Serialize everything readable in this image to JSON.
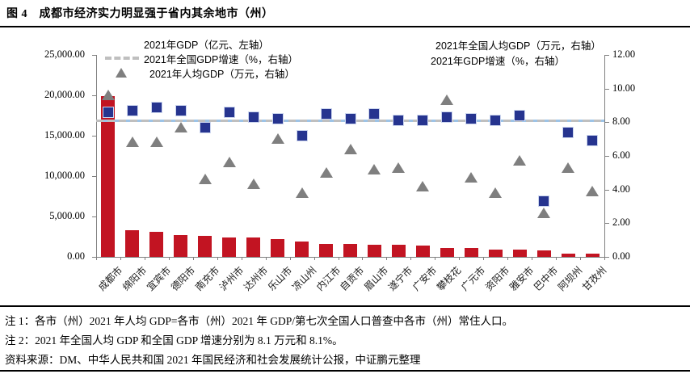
{
  "title": "图 4　成都市经济实力明显强于省内其余地市（州）",
  "legend": {
    "left": [
      {
        "icon": "red-bar-swatch",
        "label": "2021年GDP（亿元、左轴）"
      },
      {
        "icon": "gray-dash-swatch",
        "label": "2021年全国GDP增速（%，右轴）"
      },
      {
        "icon": "gray-triangle-swatch",
        "label": "2021年人均GDP（万元，右轴）"
      }
    ],
    "right": [
      {
        "icon": "blue-line-swatch",
        "label": "2021年全国人均GDP（万元，右轴）"
      },
      {
        "icon": "navy-square-swatch",
        "label": "2021年GDP增速（%，右轴）"
      }
    ]
  },
  "colors": {
    "bar_red": "#C21422",
    "square_navy": "#26348F",
    "triangle_gray": "#7F7F7F",
    "national_percap_blue": "#9DC3E6",
    "national_growth_gray": "#BFBFBF",
    "axis_gray": "#808080"
  },
  "chart_data": {
    "type": "bar",
    "categories": [
      "成都市",
      "绵阳市",
      "宜宾市",
      "德阳市",
      "南充市",
      "泸州市",
      "达州市",
      "乐山市",
      "凉山州",
      "内江市",
      "自贡市",
      "眉山市",
      "遂宁市",
      "广安市",
      "攀枝花",
      "广元市",
      "资阳市",
      "雅安市",
      "巴中市",
      "阿坝州",
      "甘孜州"
    ],
    "series": [
      {
        "name": "2021年GDP（亿元、左轴）",
        "type": "bar",
        "axis": "left",
        "values": [
          19917,
          3350,
          3148,
          2657,
          2602,
          2406,
          2351,
          2205,
          1901,
          1605,
          1601,
          1547,
          1466,
          1355,
          1134,
          1092,
          918,
          903,
          766,
          441,
          448
        ]
      },
      {
        "name": "2021年GDP增速（%，右轴）",
        "type": "scatter-square",
        "axis": "right",
        "values": [
          8.6,
          8.7,
          8.9,
          8.7,
          7.7,
          8.6,
          8.3,
          8.2,
          7.2,
          8.5,
          8.2,
          8.5,
          8.1,
          8.1,
          8.3,
          8.2,
          8.1,
          8.4,
          3.3,
          7.4,
          6.9
        ]
      },
      {
        "name": "2021年人均GDP（万元，右轴）",
        "type": "scatter-triangle",
        "axis": "right",
        "values": [
          9.6,
          6.8,
          6.8,
          7.7,
          4.6,
          5.6,
          4.3,
          7.0,
          3.8,
          5.0,
          6.4,
          5.2,
          5.3,
          4.2,
          9.3,
          4.7,
          3.8,
          5.7,
          2.6,
          5.3,
          3.9
        ]
      },
      {
        "name": "2021年全国人均GDP（万元，右轴）",
        "type": "hline",
        "axis": "right",
        "value": 8.1
      },
      {
        "name": "2021年全国GDP增速（%，右轴）",
        "type": "hline-dashed",
        "axis": "right",
        "value": 8.1
      }
    ],
    "left_axis": {
      "min": 0,
      "max": 25000,
      "ticks": [
        "25,000.00",
        "20,000.00",
        "15,000.00",
        "10,000.00",
        "5,000.00",
        "0.00"
      ]
    },
    "right_axis": {
      "min": 0,
      "max": 12,
      "ticks": [
        "12.00",
        "10.00",
        "8.00",
        "6.00",
        "4.00",
        "2.00",
        "0.00"
      ]
    },
    "grid": "off",
    "legend_position": "top"
  },
  "notes": [
    "注 1：各市（州）2021 年人均 GDP=各市（州）2021 年 GDP/第七次全国人口普查中各市（州）常住人口。",
    "注 2：2021 年全国人均 GDP 和全国 GDP 增速分别为 8.1 万元和 8.1%。",
    "资料来源：DM、中华人民共和国 2021 年国民经济和社会发展统计公报，中证鹏元整理"
  ]
}
